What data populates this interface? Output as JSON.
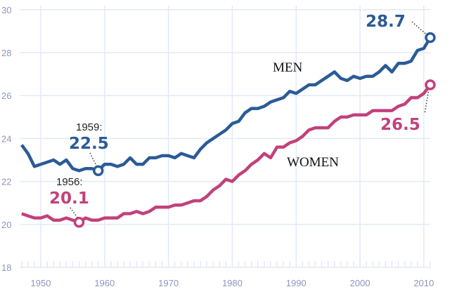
{
  "chart_data": {
    "type": "line",
    "title": "",
    "xlabel": "",
    "ylabel": "",
    "xlim": [
      1947,
      2011
    ],
    "ylim": [
      18,
      30
    ],
    "grid": true,
    "x_ticks": [
      "1950",
      "1960",
      "1970",
      "1980",
      "1990",
      "2000",
      "2010"
    ],
    "y_ticks": [
      "18",
      "20",
      "22",
      "24",
      "26",
      "28",
      "30"
    ],
    "x": [
      1947,
      1948,
      1949,
      1950,
      1951,
      1952,
      1953,
      1954,
      1955,
      1956,
      1957,
      1958,
      1959,
      1960,
      1961,
      1962,
      1963,
      1964,
      1965,
      1966,
      1967,
      1968,
      1969,
      1970,
      1971,
      1972,
      1973,
      1974,
      1975,
      1976,
      1977,
      1978,
      1979,
      1980,
      1981,
      1982,
      1983,
      1984,
      1985,
      1986,
      1987,
      1988,
      1989,
      1990,
      1991,
      1992,
      1993,
      1994,
      1995,
      1996,
      1997,
      1998,
      1999,
      2000,
      2001,
      2002,
      2003,
      2004,
      2005,
      2006,
      2007,
      2008,
      2009,
      2010,
      2011
    ],
    "series": [
      {
        "name": "MEN",
        "color": "#2b5b96",
        "values": [
          23.7,
          23.3,
          22.7,
          22.8,
          22.9,
          23.0,
          22.8,
          23.0,
          22.6,
          22.5,
          22.6,
          22.6,
          22.5,
          22.8,
          22.8,
          22.7,
          22.8,
          23.1,
          22.8,
          22.8,
          23.1,
          23.1,
          23.2,
          23.2,
          23.1,
          23.3,
          23.2,
          23.1,
          23.5,
          23.8,
          24.0,
          24.2,
          24.4,
          24.7,
          24.8,
          25.2,
          25.4,
          25.4,
          25.5,
          25.7,
          25.8,
          25.9,
          26.2,
          26.1,
          26.3,
          26.5,
          26.5,
          26.7,
          26.9,
          27.1,
          26.8,
          26.7,
          26.9,
          26.8,
          26.9,
          26.9,
          27.1,
          27.4,
          27.1,
          27.5,
          27.5,
          27.6,
          28.1,
          28.2,
          28.7
        ]
      },
      {
        "name": "WOMEN",
        "color": "#c2417b",
        "values": [
          20.5,
          20.4,
          20.3,
          20.3,
          20.4,
          20.2,
          20.2,
          20.3,
          20.2,
          20.1,
          20.3,
          20.2,
          20.2,
          20.3,
          20.3,
          20.3,
          20.5,
          20.5,
          20.6,
          20.5,
          20.6,
          20.8,
          20.8,
          20.8,
          20.9,
          20.9,
          21.0,
          21.1,
          21.1,
          21.3,
          21.6,
          21.8,
          22.1,
          22.0,
          22.3,
          22.5,
          22.8,
          23.0,
          23.3,
          23.1,
          23.6,
          23.6,
          23.8,
          23.9,
          24.1,
          24.4,
          24.5,
          24.5,
          24.5,
          24.8,
          25.0,
          25.0,
          25.1,
          25.1,
          25.1,
          25.3,
          25.3,
          25.3,
          25.3,
          25.5,
          25.6,
          25.9,
          25.9,
          26.1,
          26.5
        ]
      }
    ],
    "annotations": {
      "men_min": {
        "year_label": "1959:",
        "value_label": "22.5",
        "x": 1959,
        "y": 22.5
      },
      "women_min": {
        "year_label": "1956:",
        "value_label": "20.1",
        "x": 1956,
        "y": 20.1
      },
      "men_last": {
        "value_label": "28.7",
        "x": 2011,
        "y": 28.7
      },
      "women_last": {
        "value_label": "26.5",
        "x": 2011,
        "y": 26.5
      }
    }
  }
}
